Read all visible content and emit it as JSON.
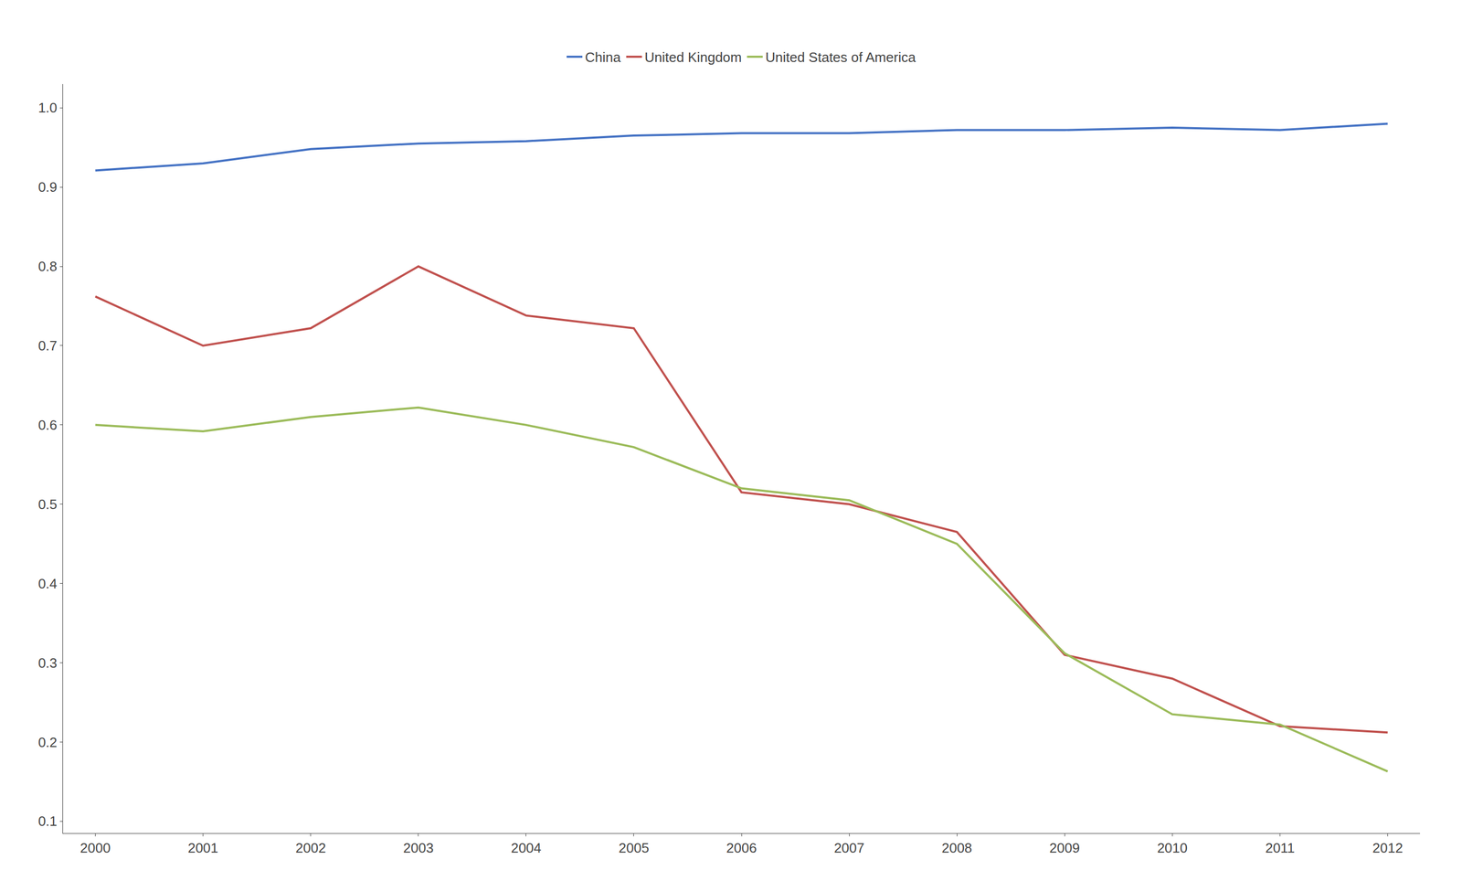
{
  "chart_data": {
    "type": "line",
    "x": [
      2000,
      2001,
      2002,
      2003,
      2004,
      2005,
      2006,
      2007,
      2008,
      2009,
      2010,
      2011,
      2012
    ],
    "series": [
      {
        "name": "China",
        "color": "#4472C4",
        "values": [
          0.921,
          0.93,
          0.948,
          0.955,
          0.958,
          0.965,
          0.968,
          0.968,
          0.972,
          0.972,
          0.975,
          0.972,
          0.98
        ]
      },
      {
        "name": "United Kingdom",
        "color": "#C0504D",
        "values": [
          0.762,
          0.7,
          0.722,
          0.8,
          0.738,
          0.722,
          0.515,
          0.5,
          0.465,
          0.31,
          0.28,
          0.22,
          0.212
        ]
      },
      {
        "name": "United States of America",
        "color": "#9BBB59",
        "values": [
          0.6,
          0.592,
          0.61,
          0.622,
          0.6,
          0.572,
          0.52,
          0.505,
          0.45,
          0.312,
          0.235,
          0.222,
          0.163
        ]
      }
    ],
    "xlim": [
      1999.7,
      2012.3
    ],
    "xticks": [
      2000,
      2001,
      2002,
      2003,
      2004,
      2005,
      2006,
      2007,
      2008,
      2009,
      2010,
      2011,
      2012
    ],
    "ylim": [
      0.085,
      1.03
    ],
    "yticks": [
      0.1,
      0.2,
      0.3,
      0.4,
      0.5,
      0.6,
      0.7,
      0.8,
      0.9,
      {
        "value": 1.0,
        "label": "1.0"
      }
    ],
    "grid": false,
    "legend": "top"
  }
}
